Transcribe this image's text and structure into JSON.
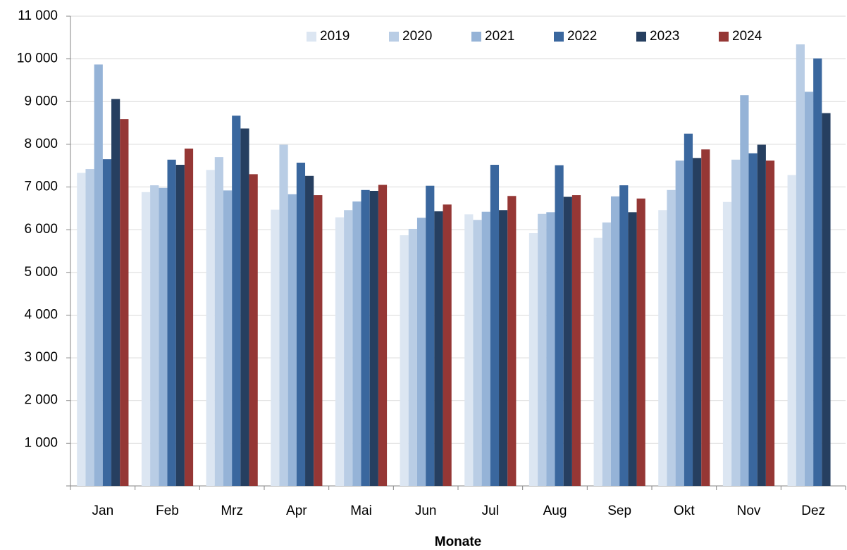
{
  "chart_data": {
    "type": "bar",
    "x_label": "Monate",
    "categories": [
      "Jan",
      "Feb",
      "Mrz",
      "Apr",
      "Mai",
      "Jun",
      "Jul",
      "Aug",
      "Sep",
      "Okt",
      "Nov",
      "Dez"
    ],
    "series": [
      {
        "name": "2019",
        "color": "#dce6f2",
        "values": [
          7330,
          6880,
          7400,
          6470,
          6290,
          5870,
          6360,
          5920,
          5810,
          6460,
          6650,
          7280
        ]
      },
      {
        "name": "2020",
        "color": "#b9cde5",
        "values": [
          7420,
          7040,
          7700,
          7990,
          6460,
          6020,
          6230,
          6370,
          6170,
          6930,
          7640,
          10340
        ]
      },
      {
        "name": "2021",
        "color": "#95b3d7",
        "values": [
          9870,
          6980,
          6920,
          6830,
          6660,
          6280,
          6420,
          6410,
          6780,
          7620,
          9150,
          9230
        ]
      },
      {
        "name": "2022",
        "color": "#3a679e",
        "values": [
          7650,
          7640,
          8670,
          7570,
          6930,
          7030,
          7520,
          7510,
          7040,
          8250,
          7790,
          10010
        ]
      },
      {
        "name": "2023",
        "color": "#263f60",
        "values": [
          9060,
          7520,
          8370,
          7260,
          6910,
          6430,
          6460,
          6770,
          6410,
          7680,
          7990,
          8730
        ]
      },
      {
        "name": "2024",
        "color": "#953735",
        "values": [
          8590,
          7900,
          7300,
          6810,
          7050,
          6590,
          6790,
          6810,
          6730,
          7880,
          7620,
          null
        ]
      }
    ],
    "ylim": [
      0,
      11000
    ],
    "yticks": [
      {
        "value": 0,
        "label": ""
      },
      {
        "value": 1000,
        "label": "1 000"
      },
      {
        "value": 2000,
        "label": "2 000"
      },
      {
        "value": 3000,
        "label": "3 000"
      },
      {
        "value": 4000,
        "label": "4 000"
      },
      {
        "value": 5000,
        "label": "5 000"
      },
      {
        "value": 6000,
        "label": "6 000"
      },
      {
        "value": 7000,
        "label": "7 000"
      },
      {
        "value": 8000,
        "label": "8 000"
      },
      {
        "value": 9000,
        "label": "9 000"
      },
      {
        "value": 10000,
        "label": "10 000"
      },
      {
        "value": 11000,
        "label": "11 000"
      }
    ],
    "grid": true,
    "legend": "top"
  }
}
